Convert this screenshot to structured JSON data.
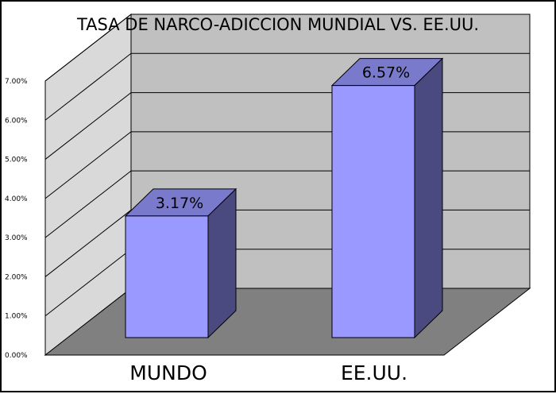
{
  "chart_data": {
    "type": "bar",
    "title": "TASA DE NARCO-ADICCION MUNDIAL VS. EE.UU.",
    "categories": [
      "MUNDO",
      "EE.UU."
    ],
    "values": [
      3.17,
      6.57
    ],
    "data_labels": [
      "3.17%",
      "6.57%"
    ],
    "ylim": [
      0,
      7
    ],
    "y_ticks": [
      {
        "v": 0,
        "label": "0.00%"
      },
      {
        "v": 1,
        "label": "1.00%"
      },
      {
        "v": 2,
        "label": "2.00%"
      },
      {
        "v": 3,
        "label": "3.00%"
      },
      {
        "v": 4,
        "label": "4.00%"
      },
      {
        "v": 5,
        "label": "5.00%"
      },
      {
        "v": 6,
        "label": "6.00%"
      },
      {
        "v": 7,
        "label": "7.00%"
      }
    ],
    "style": "3d",
    "grid": true,
    "colors": {
      "bar_front": "#9999ff",
      "bar_top": "#7a7acc",
      "bar_side": "#4a4a80",
      "back_wall": "#c0c0c0",
      "side_wall": "#d9d9d9",
      "floor": "#808080"
    }
  }
}
